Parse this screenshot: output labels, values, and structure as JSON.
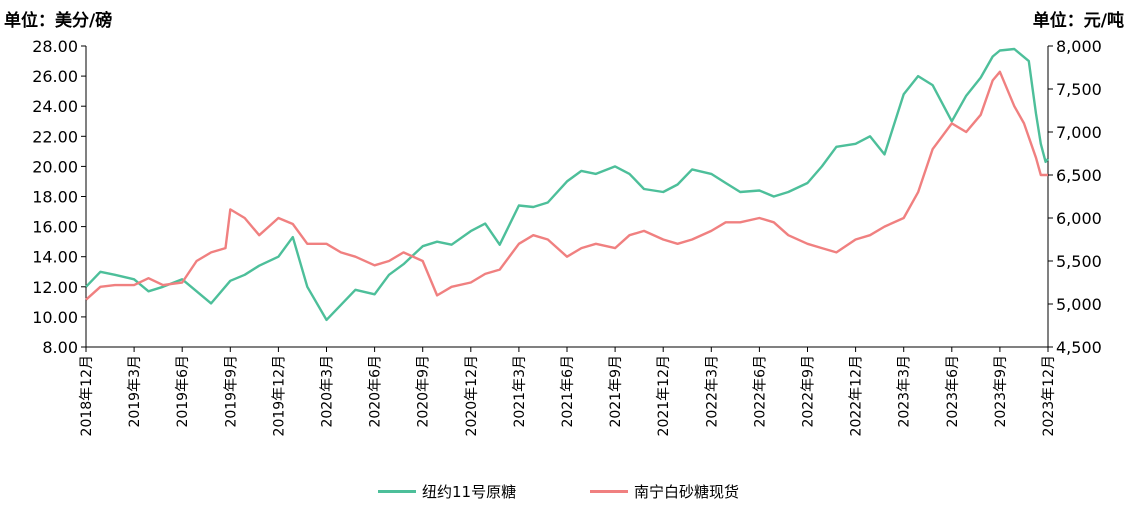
{
  "chart_data": {
    "type": "line",
    "left_unit": "单位：美分/磅",
    "right_unit": "单位：元/吨",
    "left_axis": {
      "min": 8,
      "max": 28,
      "step": 2,
      "tick_labels": [
        "8.00",
        "10.00",
        "12.00",
        "14.00",
        "16.00",
        "18.00",
        "20.00",
        "22.00",
        "24.00",
        "26.00",
        "28.00"
      ]
    },
    "right_axis": {
      "min": 4500,
      "max": 8000,
      "step": 500,
      "tick_labels": [
        "4,500",
        "5,000",
        "5,500",
        "6,000",
        "6,500",
        "7,000",
        "7,500",
        "8,000"
      ]
    },
    "x_labels": [
      "2018年12月",
      "2019年3月",
      "2019年6月",
      "2019年9月",
      "2019年12月",
      "2020年3月",
      "2020年6月",
      "2020年9月",
      "2020年12月",
      "2021年3月",
      "2021年6月",
      "2021年9月",
      "2021年12月",
      "2022年3月",
      "2022年6月",
      "2022年9月",
      "2022年12月",
      "2023年3月",
      "2023年6月",
      "2023年9月",
      "2023年12月"
    ],
    "grid": false,
    "legend_position": "bottom",
    "series": [
      {
        "name": "纽约11号原糖",
        "axis": "left",
        "color": "#4dbf9a",
        "x": [
          0,
          0.3,
          0.6,
          1.0,
          1.3,
          1.6,
          2.0,
          2.3,
          2.6,
          3.0,
          3.3,
          3.6,
          4.0,
          4.3,
          4.6,
          5.0,
          5.3,
          5.6,
          6.0,
          6.3,
          6.6,
          7.0,
          7.3,
          7.6,
          8.0,
          8.3,
          8.6,
          9.0,
          9.3,
          9.6,
          10.0,
          10.3,
          10.6,
          11.0,
          11.3,
          11.6,
          12.0,
          12.3,
          12.6,
          13.0,
          13.3,
          13.6,
          14.0,
          14.3,
          14.6,
          15.0,
          15.3,
          15.6,
          16.0,
          16.3,
          16.6,
          17.0,
          17.3,
          17.6,
          18.0,
          18.3,
          18.6,
          18.85,
          19.0,
          19.3,
          19.6,
          19.75,
          19.85,
          19.95,
          20.0
        ],
        "values": [
          12.0,
          13.0,
          12.8,
          12.5,
          11.7,
          12.0,
          12.5,
          11.7,
          10.9,
          12.4,
          12.8,
          13.4,
          14.0,
          15.3,
          12.0,
          9.8,
          10.8,
          11.8,
          11.5,
          12.8,
          13.5,
          14.7,
          15.0,
          14.8,
          15.7,
          16.2,
          14.8,
          17.4,
          17.3,
          17.6,
          19.0,
          19.7,
          19.5,
          20.0,
          19.5,
          18.5,
          18.3,
          18.8,
          19.8,
          19.5,
          18.9,
          18.3,
          18.4,
          18.0,
          18.3,
          18.9,
          20.0,
          21.3,
          21.5,
          22.0,
          20.8,
          24.8,
          26.0,
          25.4,
          23.0,
          24.7,
          25.9,
          27.3,
          27.7,
          27.8,
          27.0,
          23.5,
          21.5,
          20.3,
          20.5
        ]
      },
      {
        "name": "南宁白砂糖现货",
        "axis": "right",
        "color": "#f08080",
        "x": [
          0,
          0.3,
          0.6,
          1.0,
          1.3,
          1.6,
          2.0,
          2.3,
          2.6,
          2.9,
          3.0,
          3.3,
          3.6,
          3.8,
          4.0,
          4.3,
          4.6,
          5.0,
          5.3,
          5.6,
          6.0,
          6.3,
          6.6,
          7.0,
          7.3,
          7.6,
          8.0,
          8.3,
          8.6,
          9.0,
          9.3,
          9.6,
          10.0,
          10.3,
          10.6,
          11.0,
          11.3,
          11.6,
          12.0,
          12.3,
          12.6,
          13.0,
          13.3,
          13.6,
          14.0,
          14.3,
          14.6,
          15.0,
          15.3,
          15.6,
          16.0,
          16.3,
          16.6,
          17.0,
          17.3,
          17.6,
          18.0,
          18.3,
          18.6,
          18.85,
          19.0,
          19.3,
          19.5,
          19.75,
          19.85,
          20.0
        ],
        "values": [
          5050,
          5200,
          5220,
          5220,
          5300,
          5220,
          5250,
          5500,
          5600,
          5650,
          6100,
          6000,
          5800,
          5900,
          6000,
          5930,
          5700,
          5700,
          5600,
          5550,
          5450,
          5500,
          5600,
          5500,
          5100,
          5200,
          5250,
          5350,
          5400,
          5700,
          5800,
          5750,
          5550,
          5650,
          5700,
          5650,
          5800,
          5850,
          5750,
          5700,
          5750,
          5850,
          5950,
          5950,
          6000,
          5950,
          5800,
          5700,
          5650,
          5600,
          5750,
          5800,
          5900,
          6000,
          6300,
          6800,
          7100,
          7000,
          7200,
          7600,
          7700,
          7300,
          7100,
          6700,
          6500,
          6500
        ]
      }
    ]
  }
}
